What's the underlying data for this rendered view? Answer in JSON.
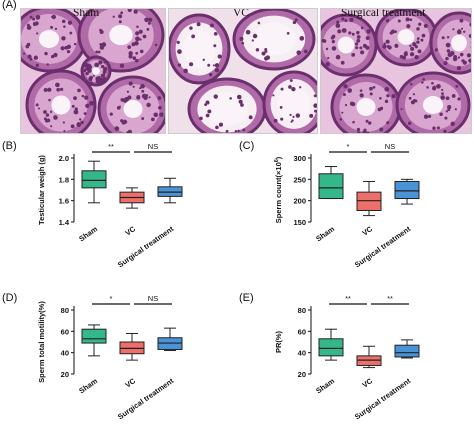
{
  "figure": {
    "panel_a_label": "(A)",
    "histology_titles": [
      "Sham",
      "VC",
      "Surgical treatment"
    ]
  },
  "colors": {
    "sham": "#35b889",
    "vc": "#ee6f69",
    "surgical": "#4a93d6",
    "tissue_bg": "#e8c4df",
    "tissue_dark": "#6a2f6c",
    "tissue_mid": "#b06aa8"
  },
  "chart_data": [
    {
      "panel": "(B)",
      "type": "box",
      "categories": [
        "Sham",
        "VC",
        "Surgical treatment"
      ],
      "ylabel": "Testicular weigh (g)",
      "ylim": [
        1.4,
        2.0
      ],
      "yticks": [
        "1.4",
        "1.6",
        "1.8",
        "2.0"
      ],
      "boxes": [
        {
          "min": 1.58,
          "q1": 1.72,
          "median": 1.79,
          "q3": 1.88,
          "max": 1.97
        },
        {
          "min": 1.53,
          "q1": 1.58,
          "median": 1.63,
          "q3": 1.68,
          "max": 1.72
        },
        {
          "min": 1.58,
          "q1": 1.64,
          "median": 1.68,
          "q3": 1.73,
          "max": 1.81
        }
      ],
      "significance": [
        {
          "from": 0,
          "to": 1,
          "label": "**"
        },
        {
          "from": 1,
          "to": 2,
          "label": "NS"
        }
      ]
    },
    {
      "panel": "(C)",
      "type": "box",
      "categories": [
        "Sham",
        "VC",
        "Surgical treatment"
      ],
      "ylabel": "Sperm count(×10",
      "ylabel_sup": "6",
      "ylabel_end": ")",
      "ylim": [
        150,
        300
      ],
      "yticks": [
        "150",
        "200",
        "250",
        "300"
      ],
      "boxes": [
        {
          "min": 205,
          "q1": 205,
          "median": 230,
          "q3": 263,
          "max": 280
        },
        {
          "min": 165,
          "q1": 177,
          "median": 200,
          "q3": 220,
          "max": 245
        },
        {
          "min": 192,
          "q1": 205,
          "median": 223,
          "q3": 245,
          "max": 250
        }
      ],
      "significance": [
        {
          "from": 0,
          "to": 1,
          "label": "*"
        },
        {
          "from": 1,
          "to": 2,
          "label": "NS"
        }
      ]
    },
    {
      "panel": "(D)",
      "type": "box",
      "categories": [
        "Sham",
        "VC",
        "Surgical treatment"
      ],
      "ylabel": "Sperm total motility(%)",
      "ylim": [
        20,
        80
      ],
      "yticks": [
        "20",
        "40",
        "60",
        "80"
      ],
      "boxes": [
        {
          "min": 37,
          "q1": 49,
          "median": 53,
          "q3": 62,
          "max": 66
        },
        {
          "min": 33,
          "q1": 39,
          "median": 44,
          "q3": 50,
          "max": 58
        },
        {
          "min": 42,
          "q1": 43,
          "median": 49,
          "q3": 54,
          "max": 63
        }
      ],
      "significance": [
        {
          "from": 0,
          "to": 1,
          "label": "*"
        },
        {
          "from": 1,
          "to": 2,
          "label": "NS"
        }
      ]
    },
    {
      "panel": "(E)",
      "type": "box",
      "categories": [
        "Sham",
        "VC",
        "Surgical treatment"
      ],
      "ylabel": "PR(%)",
      "ylim": [
        20,
        80
      ],
      "yticks": [
        "20",
        "40",
        "60",
        "80"
      ],
      "boxes": [
        {
          "min": 33,
          "q1": 37,
          "median": 44,
          "q3": 53,
          "max": 62
        },
        {
          "min": 26,
          "q1": 28,
          "median": 33,
          "q3": 37,
          "max": 46
        },
        {
          "min": 35,
          "q1": 36,
          "median": 40,
          "q3": 47,
          "max": 52
        }
      ],
      "significance": [
        {
          "from": 0,
          "to": 1,
          "label": "**"
        },
        {
          "from": 1,
          "to": 2,
          "label": "**"
        }
      ]
    }
  ]
}
